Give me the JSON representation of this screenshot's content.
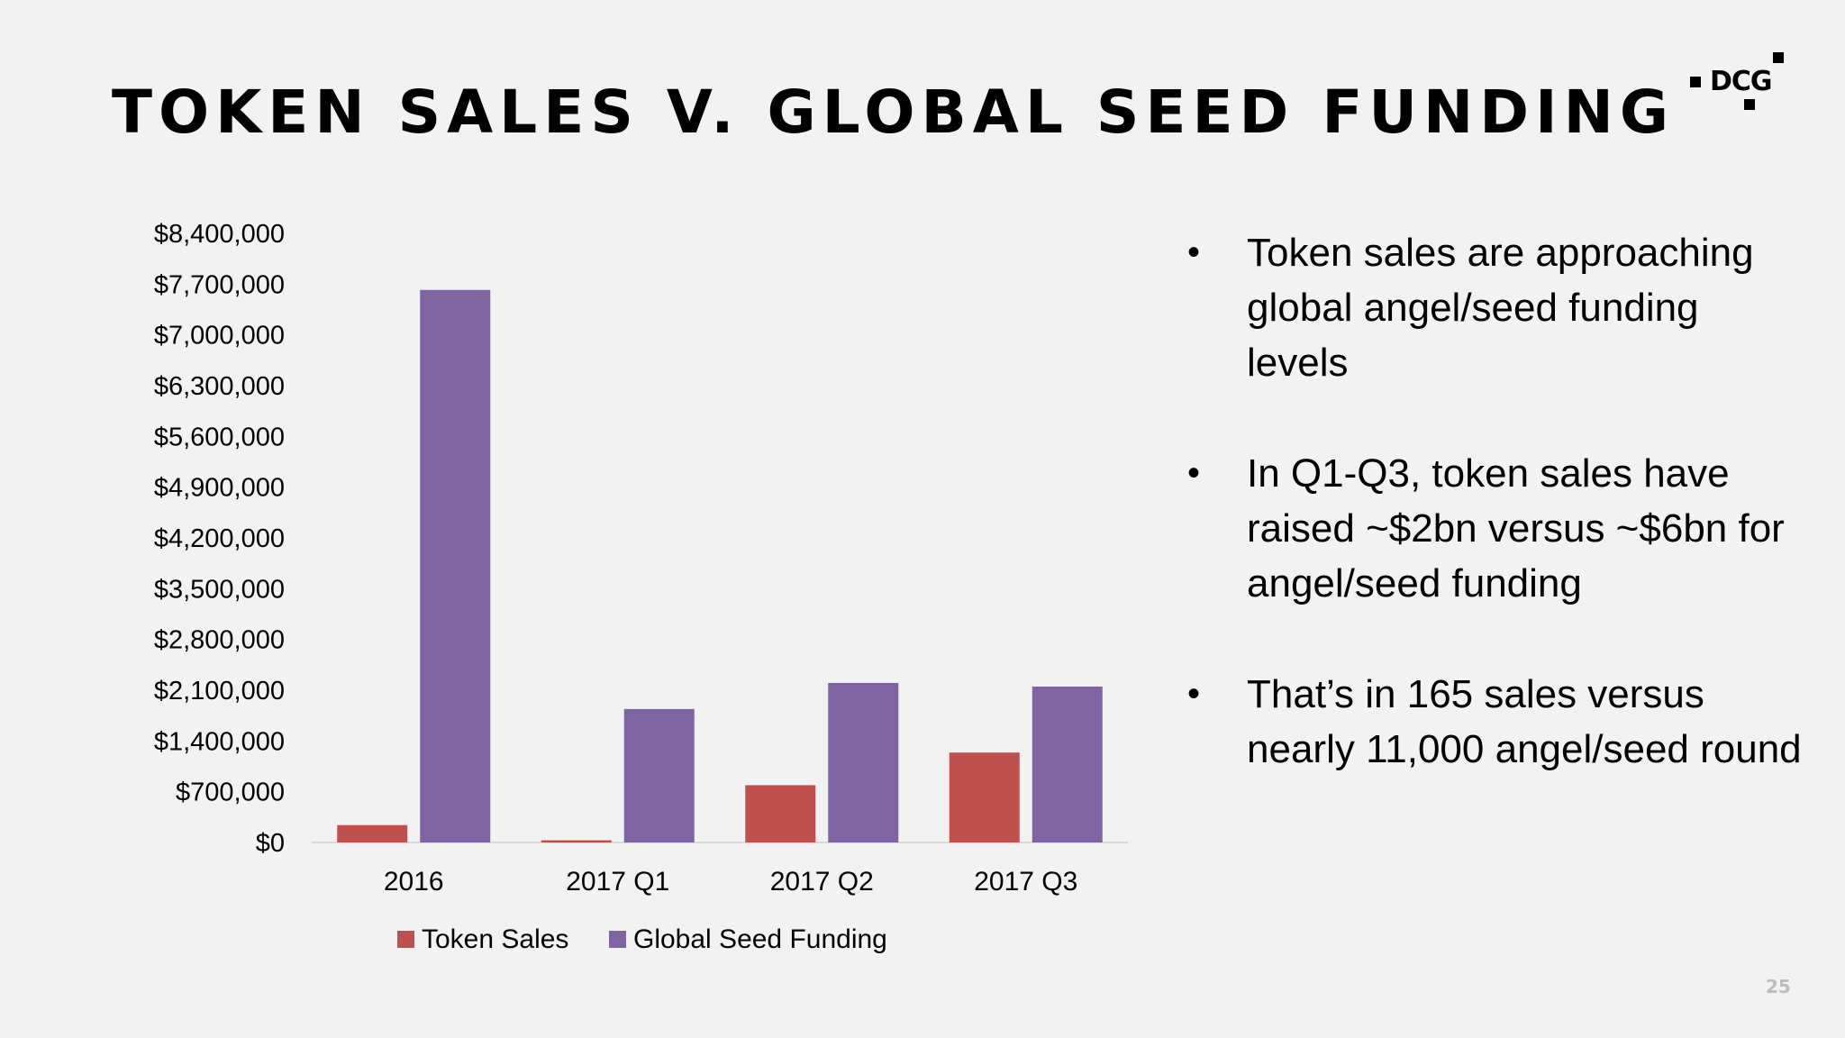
{
  "title": "TOKEN SALES V. GLOBAL SEED FUNDING",
  "logo": {
    "text": "DCG"
  },
  "page_number": "25",
  "colors": {
    "token_sales": "#c0504d",
    "global_seed_funding": "#8064a2",
    "background": "#f2f2f2"
  },
  "bullets": [
    "Token sales are approaching global angel/seed funding levels",
    "In Q1-Q3, token sales have raised ~$2bn versus ~$6bn for angel/seed funding",
    "That’s in 165 sales versus nearly 11,000 angel/seed round"
  ],
  "chart_data": {
    "type": "bar",
    "title": "",
    "xlabel": "",
    "ylabel": "",
    "categories": [
      "2016",
      "2017 Q1",
      "2017 Q2",
      "2017 Q3"
    ],
    "series": [
      {
        "name": "Token Sales",
        "color": "#c0504d",
        "values": [
          240000,
          30000,
          790000,
          1240000
        ]
      },
      {
        "name": "Global Seed Funding",
        "color": "#8064a2",
        "values": [
          7620000,
          1840000,
          2200000,
          2150000
        ]
      }
    ],
    "ylim": [
      0,
      8400000
    ],
    "yticks": [
      0,
      700000,
      1400000,
      2100000,
      2800000,
      3500000,
      4200000,
      4900000,
      5600000,
      6300000,
      7000000,
      7700000,
      8400000
    ],
    "ytick_labels": [
      "$0",
      "$700,000",
      "$1,400,000",
      "$2,100,000",
      "$2,800,000",
      "$3,500,000",
      "$4,200,000",
      "$4,900,000",
      "$5,600,000",
      "$6,300,000",
      "$7,000,000",
      "$7,700,000",
      "$8,400,000"
    ],
    "grid": false,
    "legend": "bottom"
  }
}
